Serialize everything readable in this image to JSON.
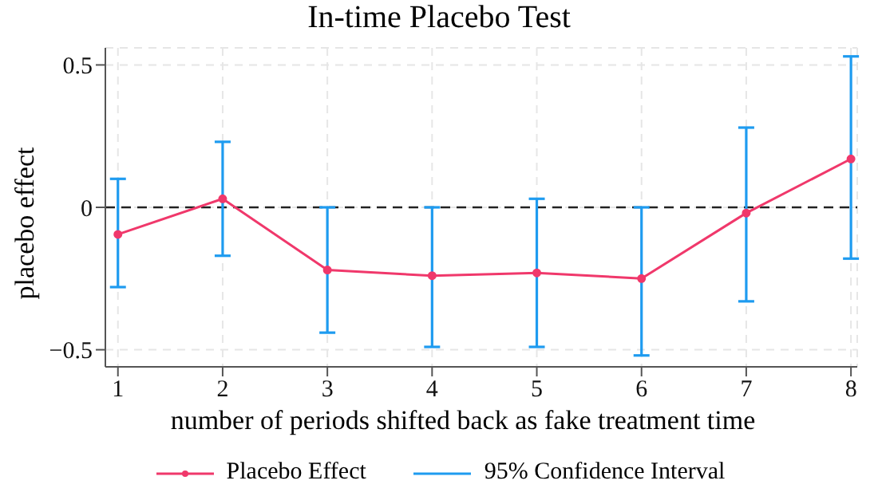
{
  "chart_data": {
    "type": "line",
    "title": "In-time Placebo Test",
    "xlabel": "number of periods shifted back as fake treatment time",
    "ylabel": "placebo effect",
    "categories": [
      "1",
      "2",
      "3",
      "4",
      "5",
      "6",
      "7",
      "8"
    ],
    "series": [
      {
        "name": "Placebo Effect",
        "color": "#f0386b",
        "values": [
          -0.095,
          0.03,
          -0.22,
          -0.24,
          -0.23,
          -0.25,
          -0.02,
          0.17
        ],
        "errors": [
          [
            -0.28,
            0.1
          ],
          [
            -0.17,
            0.23
          ],
          [
            -0.44,
            0.0
          ],
          [
            -0.49,
            0.0
          ],
          [
            -0.49,
            0.03
          ],
          [
            -0.52,
            0.0
          ],
          [
            -0.33,
            0.28
          ],
          [
            -0.18,
            0.53
          ]
        ]
      }
    ],
    "annotations": [
      "95% Confidence Interval"
    ],
    "ylim": [
      -0.56,
      0.56
    ],
    "yticks": [
      {
        "value": -0.5,
        "label": "−0.5"
      },
      0,
      0.5
    ],
    "ref_lines": [
      {
        "axis": "y",
        "value": 0,
        "color": "#222222",
        "line_style": "dashed"
      }
    ],
    "grid": true,
    "legend": "bottom",
    "marker": "circle",
    "line_style": "solid"
  }
}
